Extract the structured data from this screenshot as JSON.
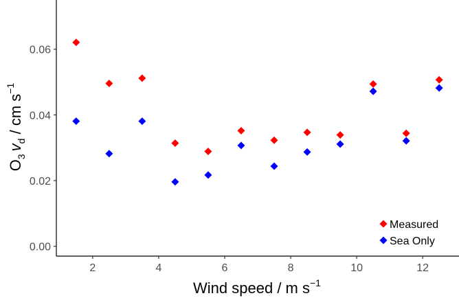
{
  "chart_data": {
    "type": "scatter",
    "x": [
      1.5,
      2.5,
      3.5,
      4.5,
      5.5,
      6.5,
      7.5,
      8.5,
      9.5,
      10.5,
      11.5,
      12.5
    ],
    "series": [
      {
        "name": "Measured",
        "color": "#ff0000",
        "values": [
          0.0621,
          0.0496,
          0.0512,
          0.0314,
          0.0289,
          0.0352,
          0.0323,
          0.0347,
          0.0339,
          0.0494,
          0.0344,
          0.0507
        ]
      },
      {
        "name": "Sea Only",
        "color": "#0000ff",
        "values": [
          0.0381,
          0.0282,
          0.0381,
          0.0196,
          0.0217,
          0.0307,
          0.0244,
          0.0287,
          0.0311,
          0.0472,
          0.0321,
          0.0482
        ]
      }
    ],
    "xlim": [
      0.9,
      13.1
    ],
    "ylim": [
      -0.003,
      0.075
    ],
    "xticks": [
      2,
      4,
      6,
      8,
      10,
      12
    ],
    "xtick_labels": [
      "2",
      "4",
      "6",
      "8",
      "10",
      "12"
    ],
    "yticks": [
      0.0,
      0.02,
      0.04,
      0.06
    ],
    "ytick_labels": [
      "0.00",
      "0.02",
      "0.04",
      "0.06"
    ],
    "xlabel": {
      "text": "Wind speed / m s",
      "sup": "−1"
    },
    "ylabel": {
      "main": "O",
      "sub1": "3",
      "var": "v",
      "sub2": "d",
      "rest": " / cm s",
      "sup": "−1"
    },
    "grid": false,
    "legend_position": "bottom-right",
    "marker": "diamond"
  }
}
